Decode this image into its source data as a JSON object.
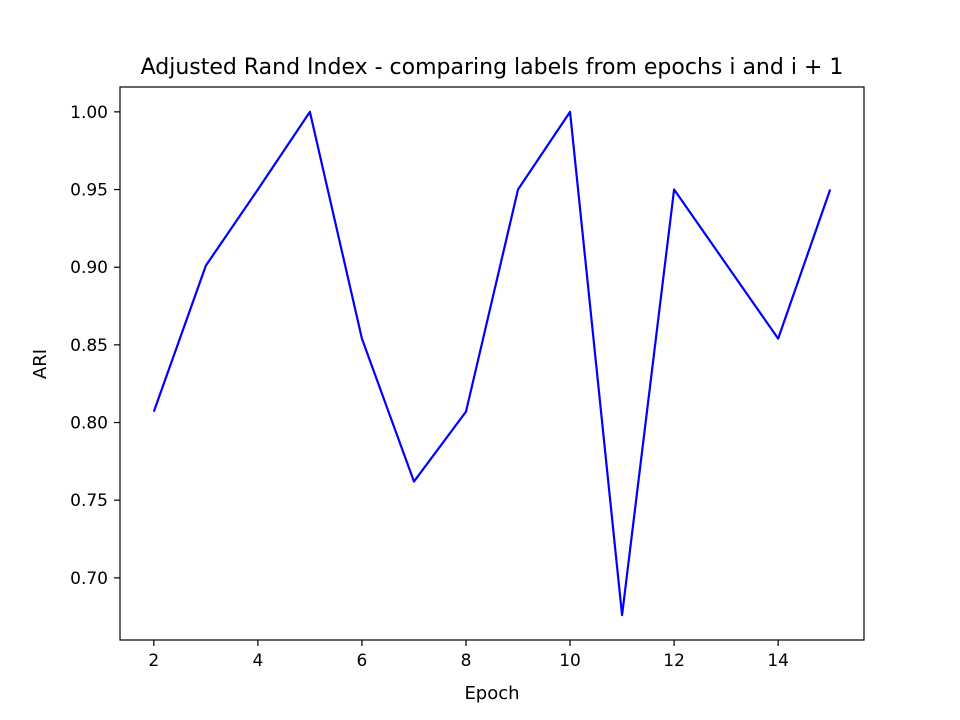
{
  "chart_data": {
    "type": "line",
    "title": "Adjusted Rand Index - comparing labels from epochs i and i + 1",
    "xlabel": "Epoch",
    "ylabel": "ARI",
    "x": [
      2,
      3,
      4,
      5,
      6,
      7,
      8,
      9,
      10,
      11,
      12,
      13,
      14,
      15
    ],
    "series": [
      {
        "values": [
          0.807,
          0.901,
          0.95,
          1.0,
          0.854,
          0.762,
          0.807,
          0.95,
          1.0,
          0.676,
          0.95,
          0.902,
          0.854,
          0.95
        ],
        "color": "#0000ff"
      }
    ],
    "xlim": [
      1.35,
      15.65
    ],
    "ylim": [
      0.66,
      1.016
    ],
    "xticks": [
      2,
      4,
      6,
      8,
      10,
      12,
      14
    ],
    "xtick_labels": [
      "2",
      "4",
      "6",
      "8",
      "10",
      "12",
      "14"
    ],
    "yticks": [
      0.7,
      0.75,
      0.8,
      0.85,
      0.9,
      0.95,
      1.0
    ],
    "ytick_labels": [
      "0.70",
      "0.75",
      "0.80",
      "0.85",
      "0.90",
      "0.95",
      "1.00"
    ],
    "grid": false,
    "legend": "none"
  }
}
